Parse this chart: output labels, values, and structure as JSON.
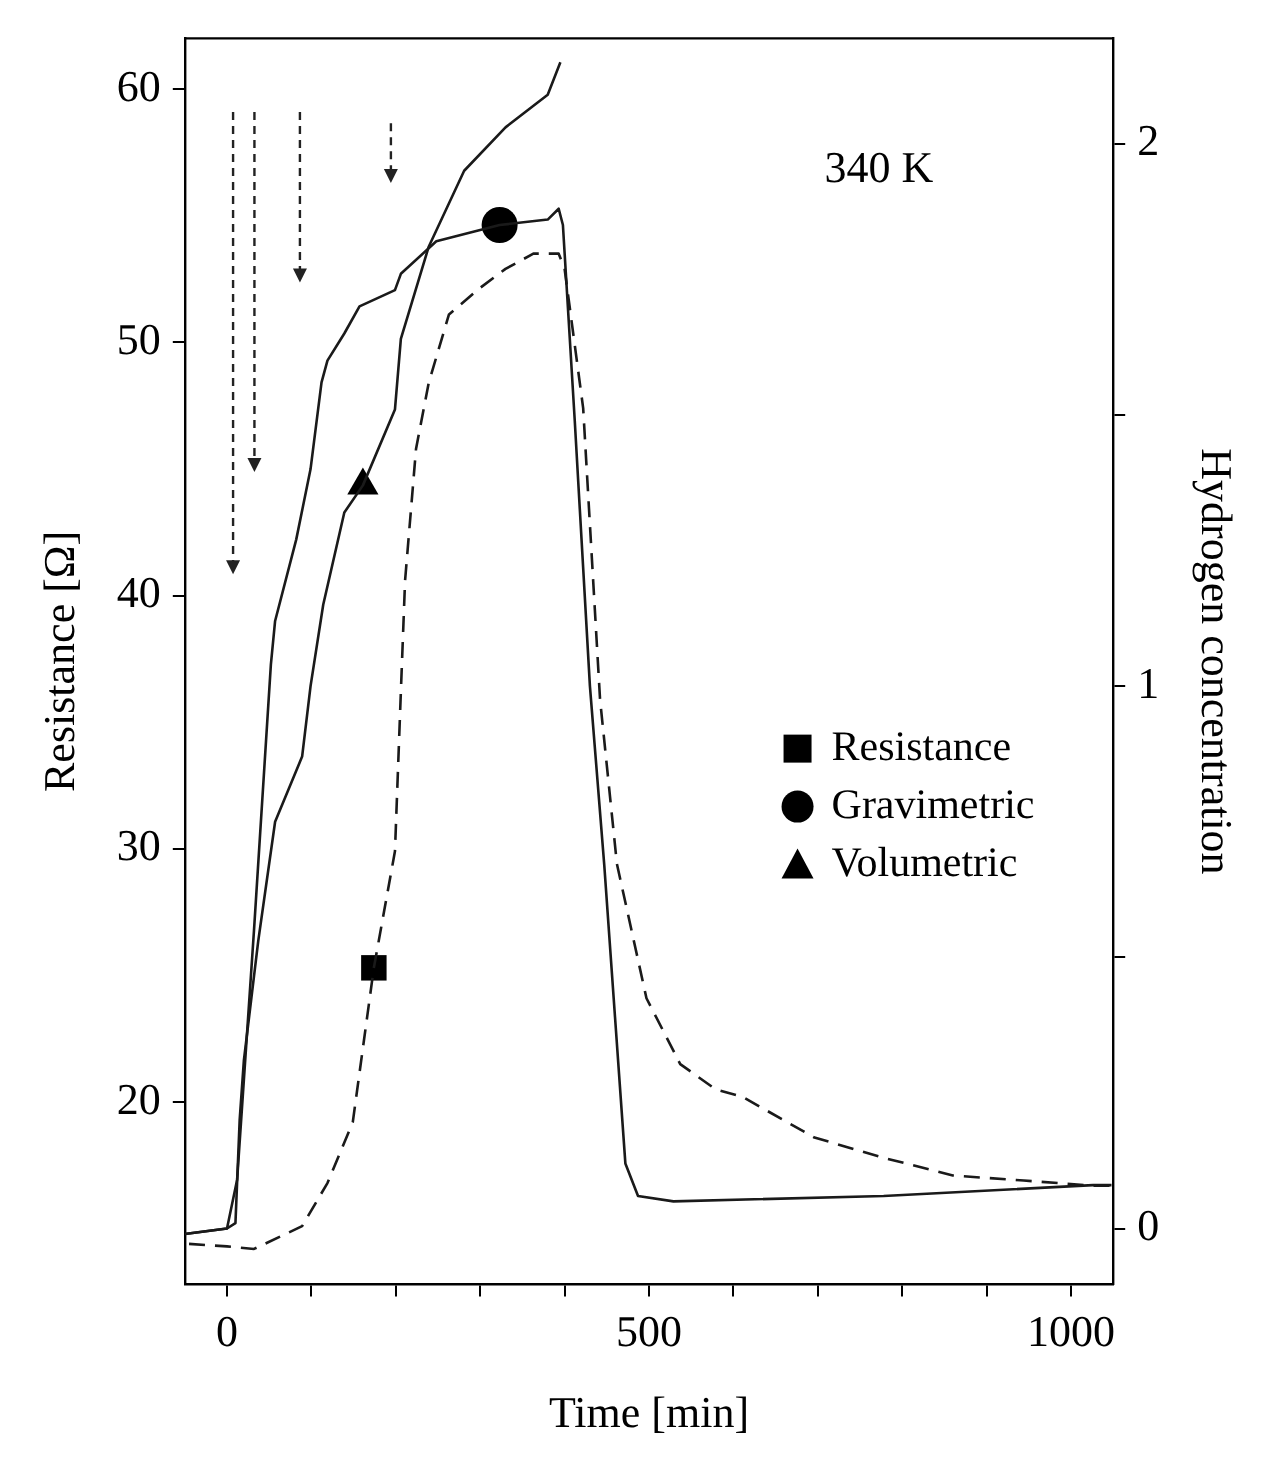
{
  "chart_data": {
    "type": "line",
    "xlabel": "Time [min]",
    "ylabel": "Resistance [Ω]",
    "y2label": "Hydrogen concentration",
    "xlim": [
      -50,
      1050
    ],
    "xticks": [
      0,
      {
        "value": 100,
        "label": null
      },
      {
        "value": 200,
        "label": null
      },
      {
        "value": 300,
        "label": null
      },
      {
        "value": 400,
        "label": null
      },
      500,
      {
        "value": 600,
        "label": null
      },
      {
        "value": 700,
        "label": null
      },
      {
        "value": 800,
        "label": null
      },
      {
        "value": 900,
        "label": null
      },
      1000
    ],
    "ylim": [
      12.8,
      62
    ],
    "yticks": [
      20,
      30,
      40,
      50,
      60
    ],
    "y2lim": [
      -0.103,
      2.194
    ],
    "y2ticks": [
      0,
      {
        "value": 0.5,
        "label": null
      },
      1,
      {
        "value": 1.5,
        "label": null
      },
      2
    ],
    "grid": false,
    "legend": "right",
    "marker": "none",
    "annotations": [
      "340 K"
    ],
    "series": [
      {
        "color": "#1a1a1a",
        "line_style": "dashed",
        "x": [
          -45,
          0,
          32,
          89,
          119,
          149,
          174,
          199,
          206,
          211,
          224,
          239,
          263,
          298,
          330,
          363,
          393,
          400,
          422,
          442,
          462,
          497,
          537,
          579,
          611,
          696,
          778,
          860,
          944,
          1026,
          1046
        ],
        "values": [
          14.4,
          14.3,
          14.2,
          15.1,
          16.8,
          19.2,
          25.3,
          29.9,
          36.2,
          40.6,
          45.8,
          48.4,
          51.1,
          52.1,
          52.9,
          53.5,
          53.5,
          52.9,
          47.4,
          35.9,
          29.4,
          24.1,
          21.5,
          20.5,
          20.2,
          18.6,
          17.8,
          17.1,
          16.9,
          16.7,
          16.7
        ]
      },
      {
        "color": "#1a1a1a",
        "line_style": "solid",
        "axis": "y2",
        "x": [
          -50,
          0,
          12,
          32,
          52,
          57,
          82,
          99,
          112,
          119,
          139,
          157,
          199,
          206,
          248,
          323,
          380,
          393,
          398,
          412,
          430,
          447,
          472,
          487,
          529,
          778,
          1026,
          1048
        ],
        "values": [
          -0.01,
          0.0,
          0.09,
          0.55,
          1.04,
          1.12,
          1.27,
          1.4,
          1.56,
          1.6,
          1.65,
          1.7,
          1.73,
          1.76,
          1.82,
          1.85,
          1.86,
          1.88,
          1.85,
          1.49,
          1.0,
          0.67,
          0.12,
          0.06,
          0.05,
          0.06,
          0.08,
          0.08
        ]
      },
      {
        "color": "#1a1a1a",
        "line_style": "solid",
        "axis": "y2",
        "x": [
          -50,
          0,
          10,
          15,
          20,
          37,
          57,
          89,
          99,
          114,
          139,
          161,
          199,
          206,
          239,
          281,
          330,
          380,
          395
        ],
        "values": [
          -0.01,
          0.0,
          0.01,
          0.2,
          0.31,
          0.53,
          0.75,
          0.87,
          1.0,
          1.15,
          1.32,
          1.37,
          1.51,
          1.64,
          1.81,
          1.95,
          2.03,
          2.09,
          2.15
        ]
      },
      {
        "type": "scatter",
        "name": "Resistance",
        "color": "#000000",
        "marker": "square",
        "x": [
          174
        ],
        "values": [
          25.3
        ]
      },
      {
        "type": "scatter",
        "name": "Gravimetric",
        "color": "#000000",
        "marker": "circle",
        "axis": "y2",
        "x": [
          323
        ],
        "values": [
          1.85
        ]
      },
      {
        "type": "scatter",
        "name": "Volumetric",
        "color": "#000000",
        "marker": "triangle",
        "axis": "y2",
        "x": [
          161
        ],
        "values": [
          1.37
        ]
      }
    ]
  }
}
